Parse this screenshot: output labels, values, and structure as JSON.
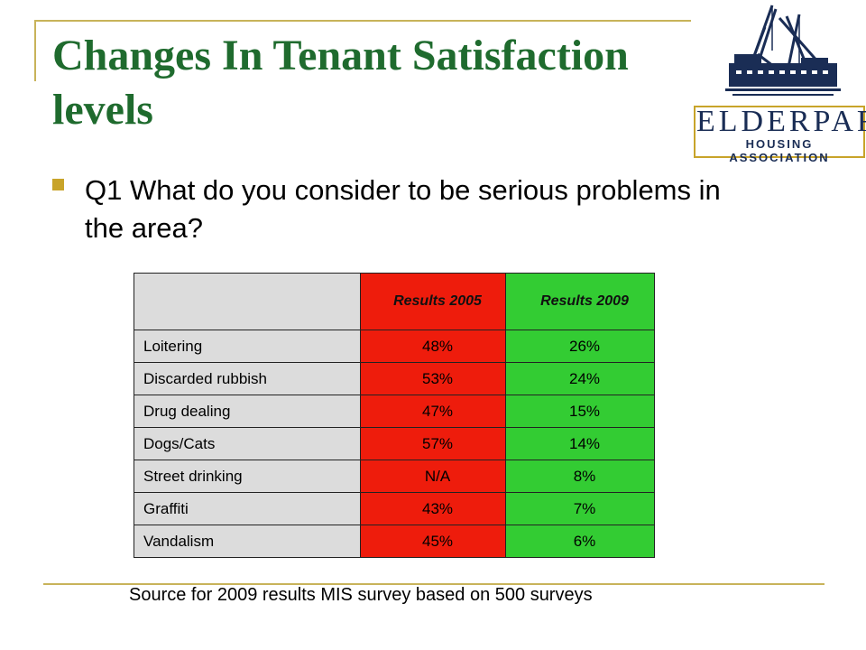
{
  "slide": {
    "title": "Changes In Tenant Satisfaction levels",
    "bullet": "Q1  What do you consider to be serious problems in the area?",
    "source_note": "Source for  2009 results  MIS survey based on 500 surveys"
  },
  "logo": {
    "name": "ELDERPARK",
    "subtitle": "HOUSING ASSOCIATION",
    "colors": {
      "navy": "#1a2d55",
      "gold": "#c8a42a"
    }
  },
  "table": {
    "headers": [
      "",
      "Results 2005",
      "Results 2009"
    ],
    "rows": [
      {
        "label": "Loitering",
        "y2005": "48%",
        "y2009": "26%"
      },
      {
        "label": "Discarded rubbish",
        "y2005": "53%",
        "y2009": "24%"
      },
      {
        "label": "Drug dealing",
        "y2005": "47%",
        "y2009": "15%"
      },
      {
        "label": "Dogs/Cats",
        "y2005": "57%",
        "y2009": "14%"
      },
      {
        "label": "Street drinking",
        "y2005": "N/A",
        "y2009": "8%"
      },
      {
        "label": "Graffiti",
        "y2005": "43%",
        "y2009": "7%"
      },
      {
        "label": "Vandalism",
        "y2005": "45%",
        "y2009": "6%"
      }
    ],
    "colors": {
      "label_bg": "#dcdcdc",
      "col2005_bg": "#ee1c0c",
      "col2009_bg": "#33cc33"
    }
  },
  "theme": {
    "title_color": "#1f6b2e",
    "accent": "#c8b35a",
    "bullet_color": "#c8a42a"
  }
}
